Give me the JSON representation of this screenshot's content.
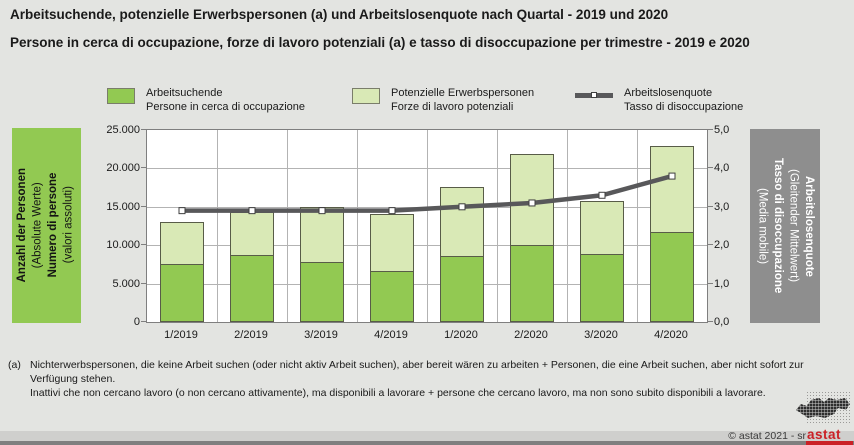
{
  "header": {
    "title_de": "Arbeitsuchende, potenzielle Erwerbspersonen (a) und Arbeitslosenquote  nach Quartal - 2019 und  2020",
    "title_it": "Persone in cerca di occupazione, forze di lavoro potenziali (a) e tasso di disoccupazione per trimestre - 2019 e 2020"
  },
  "legend": [
    {
      "label_de": "Arbeitsuchende",
      "label_it": "Persone in cerca di occupazione",
      "color": "#92c952"
    },
    {
      "label_de": "Potenzielle Erwerbspersonen",
      "label_it": "Forze di lavoro potenziali",
      "color": "#d9e9b6"
    },
    {
      "label_de": "Arbeitslosenquote",
      "label_it": "Tasso di disoccupazione",
      "color": "#58585a"
    }
  ],
  "axis_left_box": {
    "line1": "Anzahl der Personen",
    "line2": "(Absolute Werte)",
    "line3": "Numero di persone",
    "line4": "(valori assoluti)",
    "bg": "#92c952"
  },
  "axis_right_box": {
    "line1": "Arbeitslosenquote",
    "line2": "(Gleitender Mittelwert)",
    "line3": "Tasso di disoccupazione",
    "line4": "(Media mobile)",
    "bg": "#8e8e8e"
  },
  "chart_data": {
    "type": "combo",
    "subtype": "stacked-bar + line",
    "categories": [
      "1/2019",
      "2/2019",
      "3/2019",
      "4/2019",
      "1/2020",
      "2/2020",
      "3/2020",
      "4/2020"
    ],
    "series": [
      {
        "name": "Arbeitsuchende / Persone in cerca di occupazione",
        "type": "bar-stack",
        "axis": "left",
        "color": "#92c952",
        "values": [
          7600,
          8700,
          7800,
          6700,
          8600,
          10000,
          8900,
          11700
        ]
      },
      {
        "name": "Potenzielle Erwerbspersonen / Forze di lavoro potenziali",
        "type": "bar-stack",
        "axis": "left",
        "color": "#d9e9b6",
        "values": [
          5600,
          5700,
          7300,
          7500,
          9100,
          12000,
          7000,
          11300
        ]
      },
      {
        "name": "Arbeitslosenquote / Tasso di disoccupazione",
        "type": "line",
        "axis": "right",
        "color": "#58585a",
        "marker": "white-square",
        "values": [
          2.9,
          2.9,
          2.9,
          2.9,
          3.0,
          3.1,
          3.3,
          3.8
        ]
      }
    ],
    "stack_totals": [
      13200,
      14400,
      15100,
      14200,
      17700,
      22000,
      15900,
      23000
    ],
    "left_axis": {
      "min": 0,
      "max": 25000,
      "step": 5000,
      "tick_labels": [
        "25.000",
        "20.000",
        "15.000",
        "10.000",
        "5.000",
        "0"
      ]
    },
    "right_axis": {
      "min": 0,
      "max": 5,
      "step": 1,
      "tick_labels": [
        "5,0",
        "4,0",
        "3,0",
        "2,0",
        "1,0",
        "0,0"
      ]
    },
    "grid": true,
    "legend_position": "top"
  },
  "footnote": {
    "marker": "(a)",
    "de": "Nichterwerbspersonen, die keine Arbeit suchen (oder nicht aktiv Arbeit suchen), aber bereit wären zu arbeiten + Personen, die eine Arbeit suchen, aber nicht sofort zur Verfügung stehen.",
    "it": "Inattivi che non cercano lavoro (o non cercano attivamente), ma disponibili a lavorare + persone che cercano lavoro, ma non sono subito disponibili a lavorare."
  },
  "footer": {
    "copyright": "©  astat 2021 - sr",
    "logo_text": "astat"
  },
  "theme": {
    "background": "#e3e4e1",
    "band": "#cfcfcd",
    "strip": "#7f7f7f",
    "red": "#cb2026",
    "grid": "#b3b3b3",
    "bar_border": "#585c48",
    "plot_border": "#7f7f7f"
  }
}
